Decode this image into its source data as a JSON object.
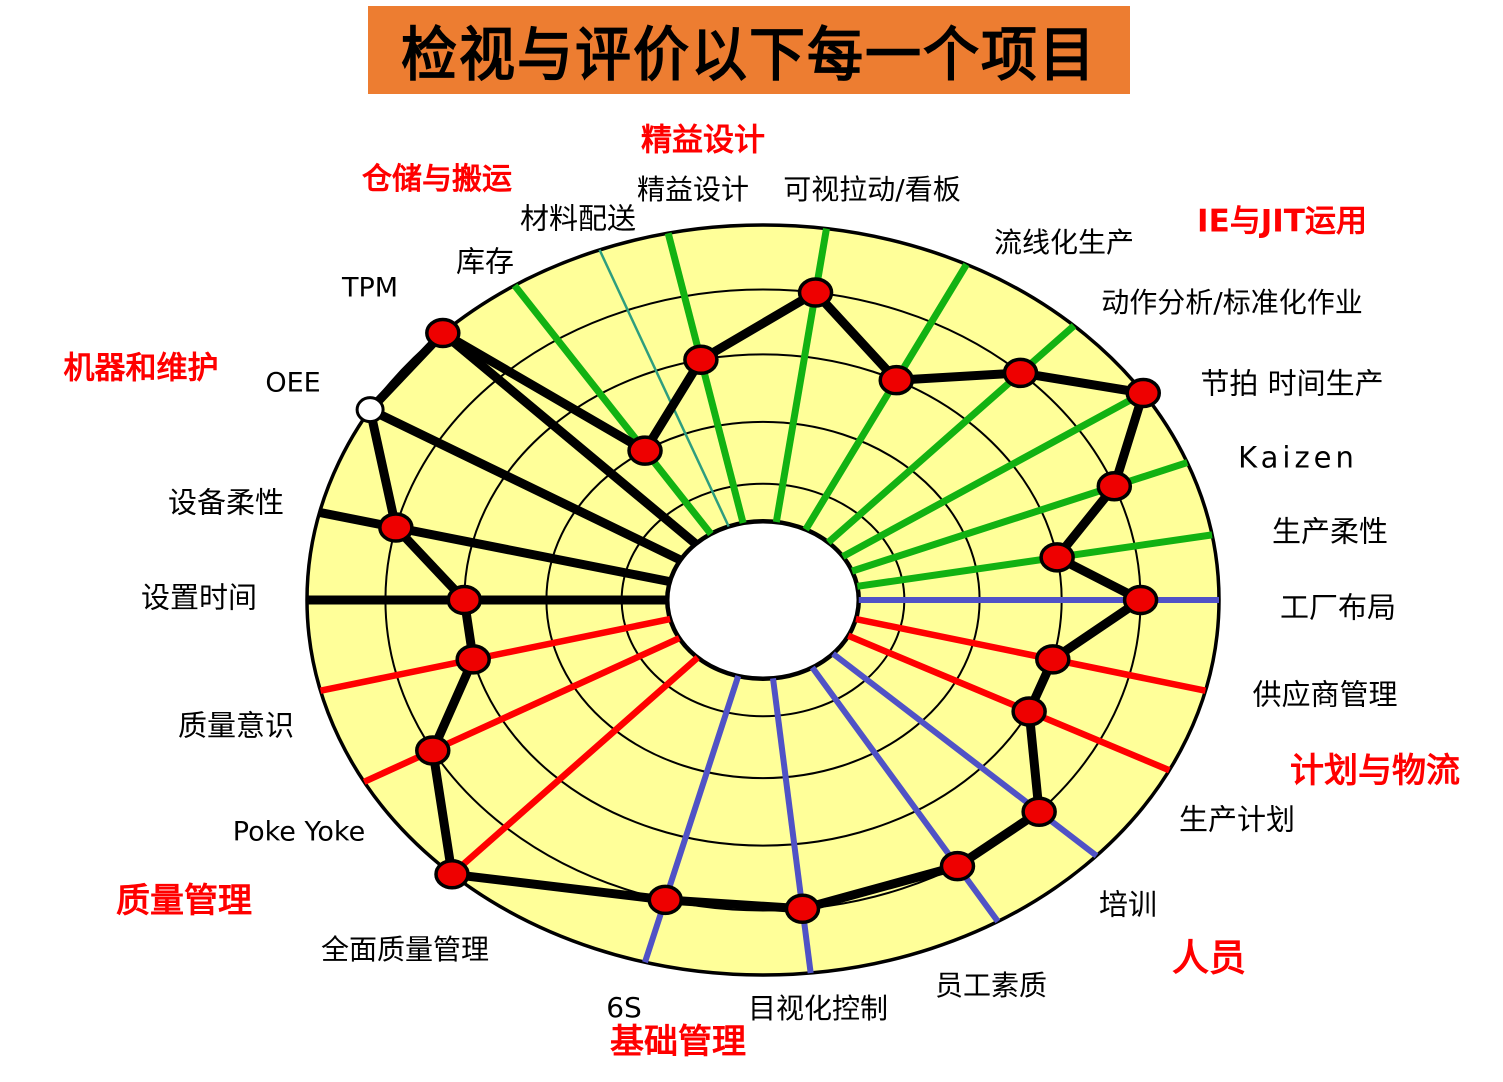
{
  "title": "检视与评价以下每一个项目",
  "chart_data": {
    "type": "radar",
    "title": "检视与评价以下每一个项目",
    "rings": 5,
    "ring_fractions": [
      0.31,
      0.475,
      0.655,
      0.828,
      1.0
    ],
    "hub_fraction": 0.21,
    "value_scale": [
      1,
      5
    ],
    "grid": "concentric-ellipses",
    "legend_position": "none",
    "colors": {
      "background": "#FFFFFF",
      "plot_fill": "#FFFF99",
      "banner": "#ED7D31",
      "grid_line": "#000000",
      "series_line": "#000000",
      "point_fill": "#EE0000",
      "open_point_fill": "#FFFFFF",
      "green_spoke": "#12B212",
      "thin_green_spoke": "#2E9E7E",
      "blue_spoke": "#5052C6",
      "red_spoke": "#FF0000",
      "black_spoke": "#000000",
      "header_red": "#FF0000"
    },
    "categories": [
      {
        "label": "精益设计",
        "angle": 102,
        "value": 3,
        "spoke_color": "green",
        "marker": "dot"
      },
      {
        "label": "可视拉动/看板",
        "angle": 82,
        "value": 4,
        "spoke_color": "green",
        "marker": "dot"
      },
      {
        "label": "流线化生产",
        "angle": 63.5,
        "value": 3,
        "spoke_color": "green",
        "marker": "dot"
      },
      {
        "label": "动作分析/标准化作业",
        "angle": 47,
        "value": 4,
        "spoke_color": "green",
        "marker": "dot"
      },
      {
        "label": "节拍 时间生产",
        "angle": 33.5,
        "value": 5,
        "spoke_color": "green",
        "marker": "dot"
      },
      {
        "label": "Kaizen",
        "angle": 21.5,
        "value": 4,
        "spoke_color": "green",
        "marker": "dot"
      },
      {
        "label": "生产柔性",
        "angle": 10,
        "value": 3,
        "spoke_color": "green",
        "marker": "dot"
      },
      {
        "label": "工厂布局",
        "angle": 0,
        "value": 4,
        "spoke_color": "blue",
        "marker": "dot"
      },
      {
        "label": "供应商管理",
        "angle": -14,
        "value": 3,
        "spoke_color": "red",
        "marker": "dot"
      },
      {
        "label": "生产计划",
        "angle": -27,
        "value": 3,
        "spoke_color": "red",
        "marker": "dot"
      },
      {
        "label": "培训",
        "angle": -43,
        "value": 4,
        "spoke_color": "blue",
        "marker": "dot"
      },
      {
        "label": "员工素质",
        "angle": -59,
        "value": 4,
        "spoke_color": "blue",
        "marker": "dot"
      },
      {
        "label": "目视化控制",
        "angle": -84,
        "value": 4,
        "spoke_color": "blue",
        "marker": "dot"
      },
      {
        "label": "6S",
        "angle": -105,
        "value": 4,
        "spoke_color": "blue",
        "marker": "dot"
      },
      {
        "label": "全面质量管理",
        "angle": -133,
        "value": 5,
        "spoke_color": "red",
        "marker": "dot"
      },
      {
        "label": "Poke Yoke",
        "angle": -151,
        "value": 4,
        "spoke_color": "red",
        "marker": "dot"
      },
      {
        "label": "质量意识",
        "angle": -166,
        "value": 3,
        "spoke_color": "red",
        "marker": "dot"
      },
      {
        "label": "设置时间",
        "angle": 180,
        "value": 3,
        "spoke_color": "black",
        "marker": "dot"
      },
      {
        "label": "设备柔性",
        "angle": 166.5,
        "value": 4,
        "spoke_color": "black",
        "marker": "dot"
      },
      {
        "label": "OEE",
        "angle": 149.5,
        "value": 5,
        "spoke_color": "black",
        "marker": "open-circle"
      },
      {
        "label": "TPM",
        "angle": 134.6,
        "value": 5,
        "spoke_color": "black",
        "marker": "dot"
      },
      {
        "label": "库存",
        "angle": 123,
        "value": 2,
        "spoke_color": "green",
        "marker": "dot"
      },
      {
        "label": "材料配送",
        "angle": 111,
        "value": null,
        "spoke_color": "green-thin",
        "marker": "none"
      }
    ],
    "group_headers": [
      {
        "label": "精益设计"
      },
      {
        "label": "仓储与搬运"
      },
      {
        "label": "IE与JIT运用"
      },
      {
        "label": "机器和维护"
      },
      {
        "label": "计划与物流"
      },
      {
        "label": "人员"
      },
      {
        "label": "基础管理"
      },
      {
        "label": "质量管理"
      }
    ]
  }
}
